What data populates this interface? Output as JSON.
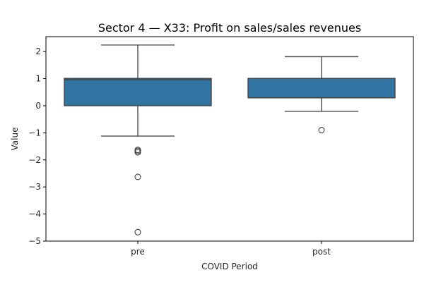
{
  "chart_data": {
    "type": "box",
    "title": "Sector 4 — X33: Profit on sales/sales revenues",
    "xlabel": "COVID Period",
    "ylabel": "Value",
    "ylim": [
      -5,
      2.55
    ],
    "yticks": [
      -5,
      -4,
      -3,
      -2,
      -1,
      0,
      1,
      2
    ],
    "grid": false,
    "categories": [
      "pre",
      "post"
    ],
    "boxes": [
      {
        "category": "pre",
        "whisker_low": -1.12,
        "q1": 0.0,
        "median": 0.96,
        "q3": 1.01,
        "whisker_high": 2.24,
        "outliers": [
          -1.63,
          -1.67,
          -1.72,
          -2.63,
          -4.67
        ]
      },
      {
        "category": "post",
        "whisker_low": -0.21,
        "q1": 0.29,
        "median": 0.29,
        "q3": 1.01,
        "whisker_high": 1.81,
        "outliers": [
          -0.9
        ]
      }
    ],
    "colors": {
      "box_fill": "#3274a1",
      "line": "#3f3f3f",
      "axis": "#000000"
    }
  }
}
